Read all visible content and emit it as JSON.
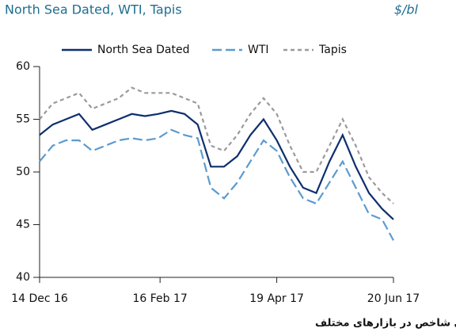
{
  "chart_data": {
    "type": "line",
    "title": "North Sea Dated, WTI, Tapis",
    "unit": "$/bl",
    "caption": "روند قیمت نفت خام های شاخص در بازارهای مختلف",
    "x": [
      "2016-12-14",
      "2016-12-21",
      "2016-12-28",
      "2017-01-04",
      "2017-01-11",
      "2017-01-18",
      "2017-01-25",
      "2017-02-01",
      "2017-02-08",
      "2017-02-15",
      "2017-02-22",
      "2017-03-01",
      "2017-03-08",
      "2017-03-15",
      "2017-03-22",
      "2017-03-29",
      "2017-04-05",
      "2017-04-12",
      "2017-04-19",
      "2017-04-26",
      "2017-05-03",
      "2017-05-10",
      "2017-05-17",
      "2017-05-24",
      "2017-05-31",
      "2017-06-07",
      "2017-06-14",
      "2017-06-20"
    ],
    "series": [
      {
        "name": "North Sea Dated",
        "color": "#0d2f6e",
        "dash": "none",
        "values": [
          53.5,
          54.5,
          55,
          55.5,
          54,
          54.5,
          55,
          55.5,
          55.3,
          55.5,
          55.8,
          55.5,
          54.5,
          50.5,
          50.5,
          51.5,
          53.5,
          55,
          53,
          50.5,
          48.5,
          48,
          51,
          53.5,
          50.5,
          48,
          46.5,
          45.5
        ]
      },
      {
        "name": "WTI",
        "color": "#5b9bd0",
        "dash": "12 5",
        "values": [
          51,
          52.5,
          53,
          53,
          52,
          52.5,
          53,
          53.2,
          53,
          53.2,
          54,
          53.5,
          53.2,
          48.5,
          47.5,
          49,
          51,
          53,
          52,
          49.5,
          47.5,
          47,
          49,
          51,
          48.5,
          46,
          45.5,
          43.5
        ]
      },
      {
        "name": "Tapis",
        "color": "#9a9a9a",
        "dash": "5 4",
        "values": [
          55,
          56.5,
          57,
          57.5,
          56,
          56.5,
          57,
          58,
          57.5,
          57.5,
          57.5,
          57,
          56.5,
          52.5,
          52,
          53.5,
          55.5,
          57,
          55.5,
          52.5,
          50,
          50,
          52.5,
          55,
          52.5,
          49.5,
          48,
          47
        ]
      }
    ],
    "xlim": [
      "2016-12-14",
      "2017-06-20"
    ],
    "xticks": [
      {
        "value": "2016-12-14",
        "label": "14 Dec 16"
      },
      {
        "value": "2017-02-16",
        "label": "16 Feb 17"
      },
      {
        "value": "2017-04-19",
        "label": "19 Apr 17"
      },
      {
        "value": "2017-06-20",
        "label": "20 Jun 17"
      }
    ],
    "ylim": [
      40,
      60
    ],
    "yticks": [
      40,
      45,
      50,
      55,
      60
    ],
    "grid": false
  }
}
